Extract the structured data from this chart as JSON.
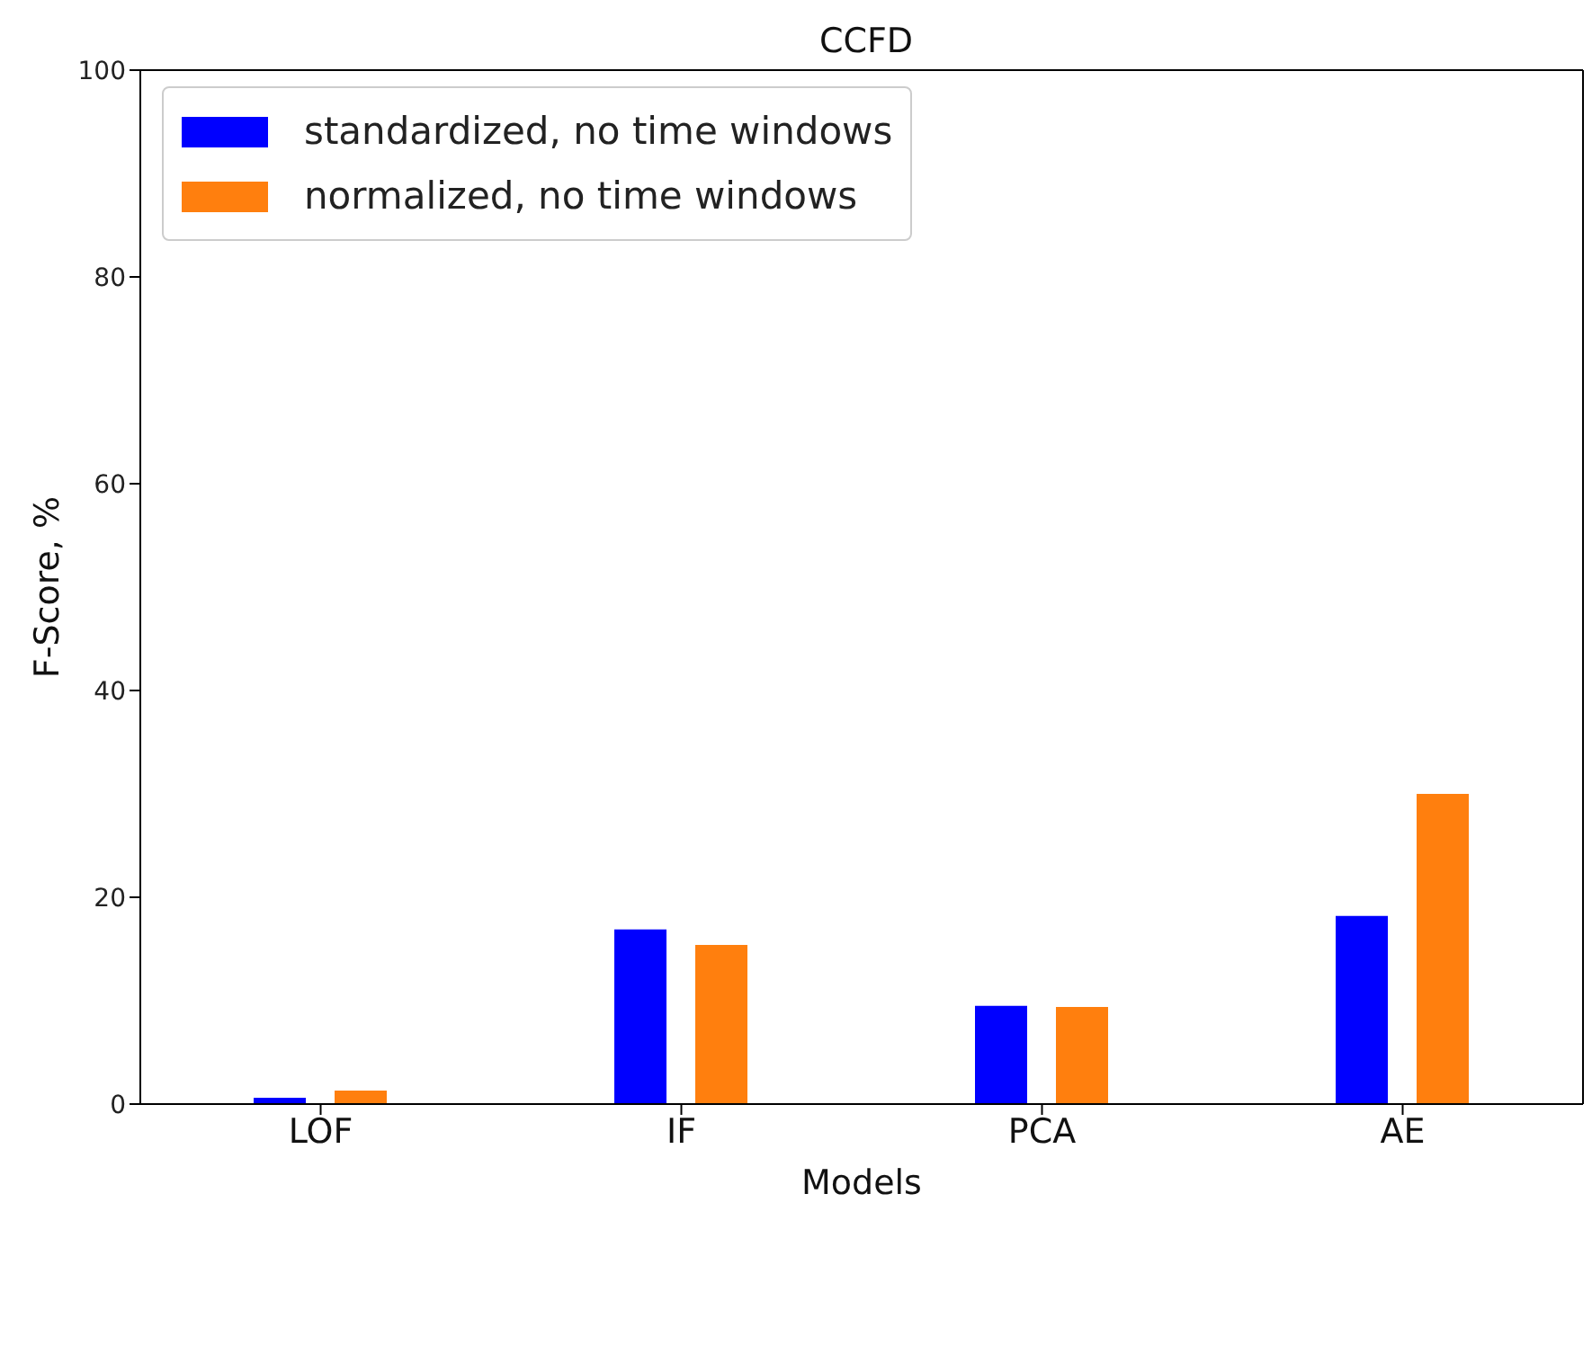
{
  "chart_data": {
    "type": "bar",
    "title": "CCFD",
    "xlabel": "Models",
    "ylabel": "F-Score, %",
    "categories": [
      "LOF",
      "IF",
      "PCA",
      "AE"
    ],
    "series": [
      {
        "name": "standardized, no time windows",
        "color": "#0000ff",
        "values": [
          0.6,
          16.9,
          9.5,
          18.2
        ]
      },
      {
        "name": "normalized, no time windows",
        "color": "#ff7f0e",
        "values": [
          1.3,
          15.4,
          9.4,
          30.0
        ]
      }
    ],
    "ylim": [
      0,
      100
    ],
    "yticks": [
      0,
      20,
      40,
      60,
      80,
      100
    ],
    "legend": "top left"
  }
}
